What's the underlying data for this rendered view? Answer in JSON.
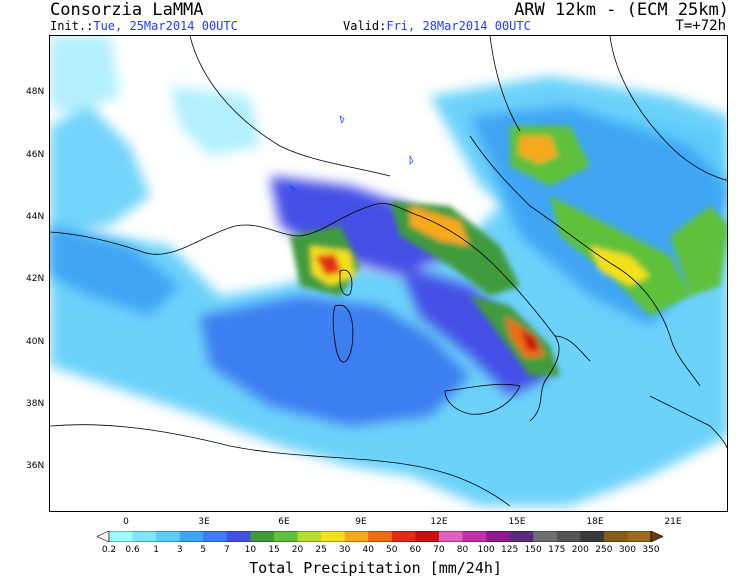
{
  "header": {
    "title_left": "Consorzia LaMMA",
    "title_right": "ARW 12km - (ECM 25km)",
    "init_prefix": "Init.:",
    "init_value": "Tue, 25Mar2014 00UTC",
    "valid_prefix": "Valid:",
    "valid_value": "Fri, 28Mar2014 00UTC",
    "lead_time": "T=+72h"
  },
  "map": {
    "lat_labels": [
      "48N",
      "46N",
      "44N",
      "42N",
      "40N",
      "38N",
      "36N"
    ],
    "lon_labels": [
      "0",
      "3E",
      "6E",
      "9E",
      "12E",
      "15E",
      "18E",
      "21E"
    ]
  },
  "colorbar": {
    "title": "Total Precipitation [mm/24h]",
    "ticks": [
      "0.2",
      "0.6",
      "1",
      "3",
      "5",
      "7",
      "10",
      "15",
      "20",
      "25",
      "30",
      "40",
      "50",
      "60",
      "70",
      "80",
      "100",
      "125",
      "150",
      "175",
      "200",
      "250",
      "300",
      "350"
    ],
    "colors": [
      "#ffffff",
      "#a0fcff",
      "#7fe6ff",
      "#5ccdf9",
      "#3fa6f4",
      "#3c7ef0",
      "#4450e6",
      "#3f9b3c",
      "#5fc13a",
      "#b4dc2a",
      "#f2e21e",
      "#f7a91a",
      "#ef6c16",
      "#e52a16",
      "#cc0e10",
      "#e060c0",
      "#c030a8",
      "#901a90",
      "#5a2a80",
      "#707070",
      "#555555",
      "#3a3a3a",
      "#8a5a1a",
      "#a06a20",
      "#6a3a10"
    ]
  },
  "colors": {
    "sea_blue": "#3c7ef0",
    "coast_line": "#000000",
    "init_text": "#1e3cff"
  }
}
